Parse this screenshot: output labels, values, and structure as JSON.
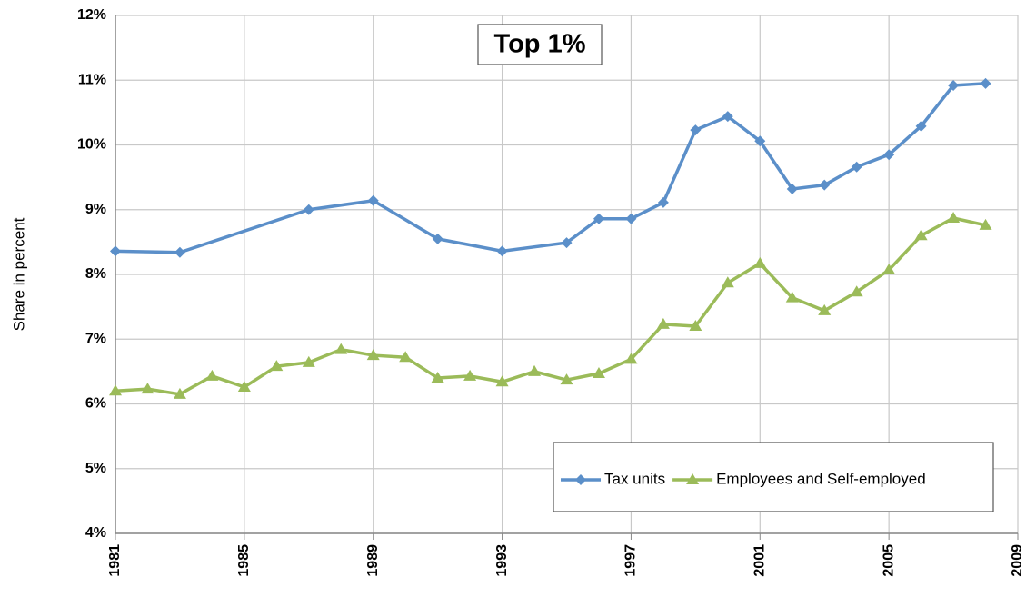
{
  "chart_data": {
    "type": "line",
    "title": "Top 1%",
    "y_label": "Share in percent",
    "xlim": [
      1981,
      2009
    ],
    "xticks": [
      1981,
      1985,
      1989,
      1993,
      1997,
      2001,
      2005,
      2009
    ],
    "ylim": [
      4,
      12
    ],
    "yticks": [
      {
        "value": 4,
        "label": "4%"
      },
      {
        "value": 5,
        "label": "5%"
      },
      {
        "value": 6,
        "label": "6%"
      },
      {
        "value": 7,
        "label": "7%"
      },
      {
        "value": 8,
        "label": "8%"
      },
      {
        "value": 9,
        "label": "9%"
      },
      {
        "value": 10,
        "label": "10%"
      },
      {
        "value": 11,
        "label": "11%"
      },
      {
        "value": 12,
        "label": "12%"
      }
    ],
    "grid": true,
    "legend": "lower right",
    "series": [
      {
        "name": "Tax units",
        "color": "#5b8fc9",
        "marker": "diamond",
        "x": [
          1981,
          1983,
          1987,
          1989,
          1991,
          1993,
          1995,
          1996,
          1997,
          1998,
          1999,
          2000,
          2001,
          2002,
          2003,
          2004,
          2005,
          2006,
          2007,
          2008
        ],
        "values": [
          8.36,
          8.34,
          9.0,
          9.14,
          8.55,
          8.36,
          8.49,
          8.86,
          8.86,
          9.11,
          10.23,
          10.44,
          10.06,
          9.32,
          9.38,
          9.66,
          9.85,
          10.29,
          10.92,
          10.95
        ]
      },
      {
        "name": "Employees and Self-employed",
        "color": "#9bbb59",
        "marker": "triangle",
        "x": [
          1981,
          1982,
          1983,
          1984,
          1985,
          1986,
          1987,
          1988,
          1989,
          1990,
          1991,
          1992,
          1993,
          1994,
          1995,
          1996,
          1997,
          1998,
          1999,
          2000,
          2001,
          2002,
          2003,
          2004,
          2005,
          2006,
          2007,
          2008
        ],
        "values": [
          6.2,
          6.23,
          6.15,
          6.43,
          6.26,
          6.58,
          6.64,
          6.84,
          6.75,
          6.72,
          6.4,
          6.43,
          6.34,
          6.5,
          6.37,
          6.47,
          6.69,
          7.23,
          7.2,
          7.87,
          8.17,
          7.64,
          7.44,
          7.73,
          8.07,
          8.6,
          8.87,
          8.76
        ]
      }
    ]
  }
}
